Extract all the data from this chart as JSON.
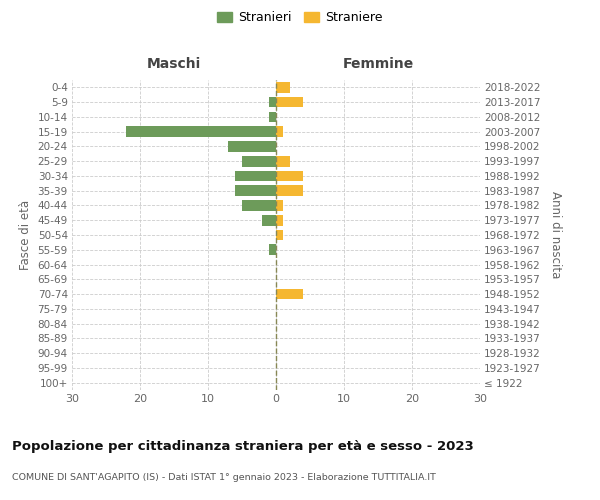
{
  "age_groups": [
    "100+",
    "95-99",
    "90-94",
    "85-89",
    "80-84",
    "75-79",
    "70-74",
    "65-69",
    "60-64",
    "55-59",
    "50-54",
    "45-49",
    "40-44",
    "35-39",
    "30-34",
    "25-29",
    "20-24",
    "15-19",
    "10-14",
    "5-9",
    "0-4"
  ],
  "birth_years": [
    "≤ 1922",
    "1923-1927",
    "1928-1932",
    "1933-1937",
    "1938-1942",
    "1943-1947",
    "1948-1952",
    "1953-1957",
    "1958-1962",
    "1963-1967",
    "1968-1972",
    "1973-1977",
    "1978-1982",
    "1983-1987",
    "1988-1992",
    "1993-1997",
    "1998-2002",
    "2003-2007",
    "2008-2012",
    "2013-2017",
    "2018-2022"
  ],
  "maschi": [
    0,
    0,
    0,
    0,
    0,
    0,
    0,
    0,
    0,
    1,
    0,
    2,
    5,
    6,
    6,
    5,
    7,
    22,
    1,
    1,
    0
  ],
  "femmine": [
    0,
    0,
    0,
    0,
    0,
    0,
    4,
    0,
    0,
    0,
    1,
    1,
    1,
    4,
    4,
    2,
    0,
    1,
    0,
    4,
    2
  ],
  "maschi_color": "#6d9b5a",
  "femmine_color": "#f5b731",
  "xlim": 30,
  "title": "Popolazione per cittadinanza straniera per età e sesso - 2023",
  "subtitle": "COMUNE DI SANT'AGAPITO (IS) - Dati ISTAT 1° gennaio 2023 - Elaborazione TUTTITALIA.IT",
  "ylabel_left": "Fasce di età",
  "ylabel_right": "Anni di nascita",
  "xlabel_maschi": "Maschi",
  "xlabel_femmine": "Femmine",
  "legend_maschi": "Stranieri",
  "legend_femmine": "Straniere",
  "bg_color": "#ffffff",
  "grid_color": "#cccccc",
  "centerline_color": "#888855"
}
